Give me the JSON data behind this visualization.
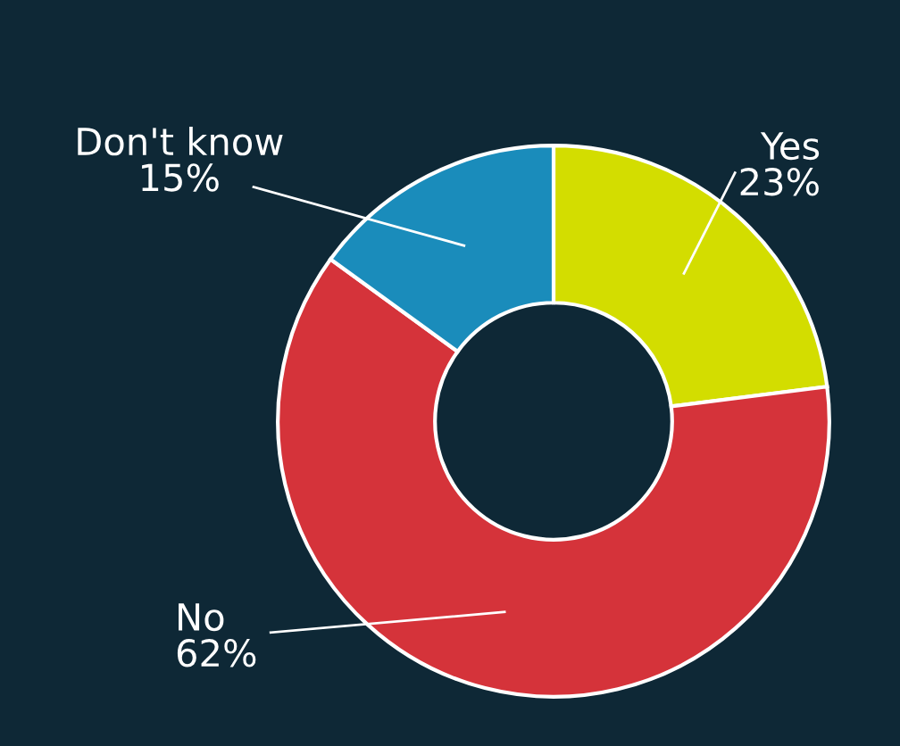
{
  "chart_data": {
    "type": "donut",
    "categories": [
      "Yes",
      "No",
      "Don't know"
    ],
    "values": [
      23,
      62,
      15
    ],
    "value_labels": [
      "23%",
      "62%",
      "15%"
    ],
    "colors": [
      "#d3dd00",
      "#d5333a",
      "#1a8cbb"
    ],
    "legend": false
  }
}
